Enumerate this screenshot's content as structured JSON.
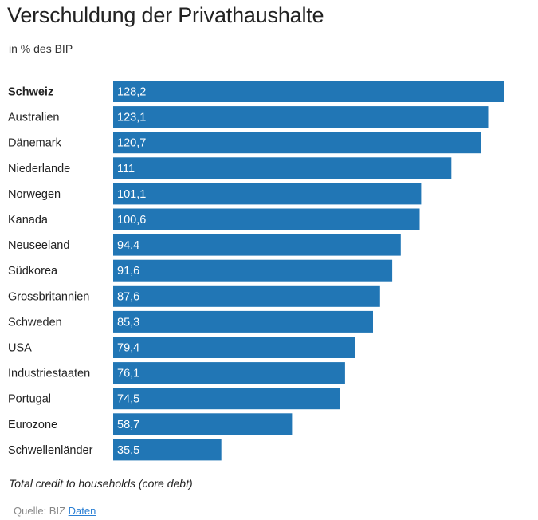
{
  "chart_data": {
    "type": "bar",
    "orientation": "horizontal",
    "title": "Verschuldung der Privathaushalte",
    "subtitle": "in % des BIP",
    "categories": [
      "Schweiz",
      "Australien",
      "Dänemark",
      "Niederlande",
      "Norwegen",
      "Kanada",
      "Neuseeland",
      "Südkorea",
      "Grossbritannien",
      "Schweden",
      "USA",
      "Industriestaaten",
      "Portugal",
      "Eurozone",
      "Schwellenländer"
    ],
    "values": [
      128.2,
      123.1,
      120.7,
      111,
      101.1,
      100.6,
      94.4,
      91.6,
      87.6,
      85.3,
      79.4,
      76.1,
      74.5,
      58.7,
      35.5
    ],
    "value_labels": [
      "128,2",
      "123,1",
      "120,7",
      "111",
      "101,1",
      "100,6",
      "94,4",
      "91,6",
      "87,6",
      "85,3",
      "79,4",
      "76,1",
      "74,5",
      "58,7",
      "35,5"
    ],
    "highlighted_category": "Schweiz",
    "bar_color": "#2176b5",
    "label_color": "#ffffff",
    "xlim": [
      0,
      128.2
    ],
    "note": "Total credit to households (core debt)",
    "source_label": "Quelle: BIZ",
    "source_link": "Daten"
  },
  "colors": {
    "link": "#2a7fd4",
    "source_text": "#888888"
  }
}
